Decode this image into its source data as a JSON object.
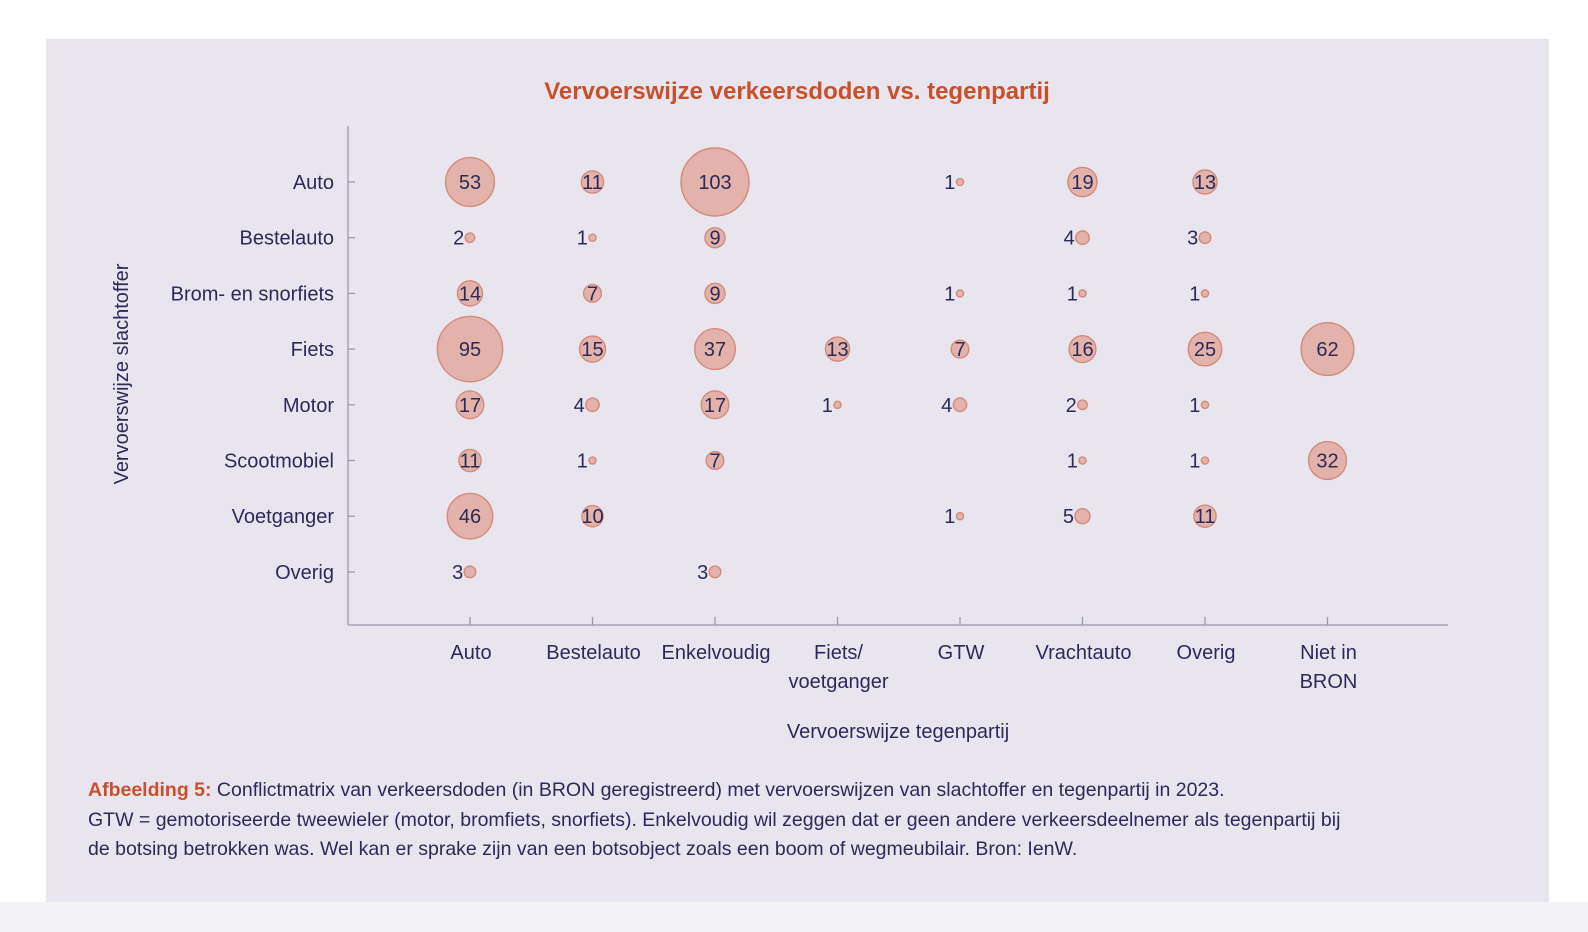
{
  "chart_data": {
    "type": "bubble-matrix",
    "title": "Vervoerswijze verkeersdoden vs. tegenpartij",
    "xlabel": "Vervoerswijze tegenpartij",
    "ylabel": "Vervoerswijze slachtoffer",
    "columns": [
      [
        "Auto"
      ],
      [
        "Bestelauto"
      ],
      [
        "Enkelvoudig"
      ],
      [
        "Fiets/",
        "voetganger"
      ],
      [
        "GTW"
      ],
      [
        "Vrachtauto"
      ],
      [
        "Overig"
      ],
      [
        "Niet in",
        "BRON"
      ]
    ],
    "rows": [
      "Auto",
      "Bestelauto",
      "Brom- en snorfiets",
      "Fiets",
      "Motor",
      "Scootmobiel",
      "Voetganger",
      "Overig"
    ],
    "values": [
      [
        53,
        11,
        103,
        null,
        1,
        19,
        13,
        null
      ],
      [
        2,
        1,
        9,
        null,
        null,
        4,
        3,
        null
      ],
      [
        14,
        7,
        9,
        null,
        1,
        1,
        1,
        null
      ],
      [
        95,
        15,
        37,
        13,
        7,
        16,
        25,
        62
      ],
      [
        17,
        4,
        17,
        1,
        4,
        2,
        1,
        null
      ],
      [
        11,
        1,
        7,
        null,
        null,
        1,
        1,
        32
      ],
      [
        46,
        10,
        null,
        null,
        1,
        5,
        11,
        null
      ],
      [
        3,
        null,
        3,
        null,
        null,
        null,
        null,
        null
      ]
    ],
    "colors": {
      "bubble_fill": "#e3b3ab",
      "bubble_stroke": "#d48a7b",
      "text": "#2c2a5a",
      "title": "#c8502a"
    }
  },
  "caption": {
    "lead": "Afbeelding 5:",
    "line1": " Conflictmatrix van verkeersdoden (in BRON geregistreerd) met vervoerswijzen van slachtoffer en tegenpartij in 2023.",
    "line2": "GTW = gemotoriseerde tweewieler (motor, bromfiets, snorfiets). Enkelvoudig wil zeggen dat er geen andere verkeersdeelnemer als tegenpartij bij",
    "line3": "de botsing betrokken was. Wel kan er sprake zijn van een botsobject zoals een boom of wegmeubilair. Bron: IenW."
  }
}
